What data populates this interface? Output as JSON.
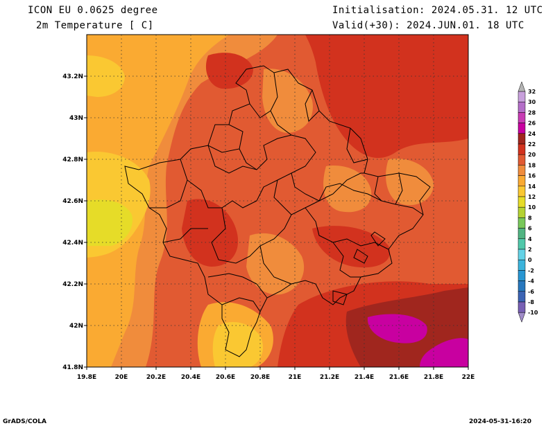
{
  "header": {
    "model": "ICON EU 0.0625 degree",
    "field": "2m Temperature [ C]",
    "init": "Initialisation: 2024.05.31. 12 UTC",
    "valid": "Valid(+30): 2024.JUN.01. 18 UTC"
  },
  "footer": {
    "credit": "GrADS/COLA",
    "timestamp": "2024-05-31-16:20"
  },
  "map": {
    "lon_ticks": [
      "19.8E",
      "20E",
      "20.2E",
      "20.4E",
      "20.6E",
      "20.8E",
      "21E",
      "21.2E",
      "21.4E",
      "21.6E",
      "21.8E",
      "22E"
    ],
    "lat_ticks": [
      "43.2N",
      "43N",
      "42.8N",
      "42.6N",
      "42.4N",
      "42.2N",
      "42N",
      "41.8N"
    ]
  },
  "colorbar": {
    "labels": [
      "32",
      "30",
      "28",
      "26",
      "24",
      "22",
      "20",
      "18",
      "16",
      "14",
      "12",
      "10",
      "8",
      "6",
      "4",
      "2",
      "0",
      "-2",
      "-4",
      "-6",
      "-8",
      "-10"
    ],
    "colors": {
      "30": "#c8a0dc",
      "28": "#b46ec8",
      "26": "#c83cb4",
      "24": "#c800a0",
      "22": "#a0261e",
      "20": "#d2321e",
      "18": "#e15a32",
      "16": "#f08c3c",
      "14": "#faaa32",
      "12": "#fac832",
      "10": "#e6dc28",
      "8": "#b4d232",
      "6": "#78c85a",
      "4": "#50b482",
      "2": "#50c8aa",
      "0": "#64d2e6",
      "-2": "#3cb4dc",
      "-4": "#2896d2",
      "-6": "#2878be",
      "-8": "#3c64b4",
      "-10": "#7860b4"
    }
  }
}
